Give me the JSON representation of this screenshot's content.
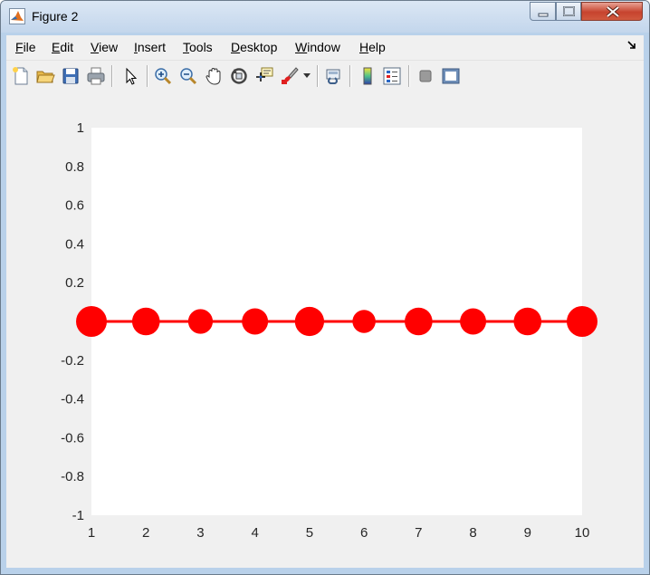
{
  "window": {
    "title": "Figure 2",
    "controls": {
      "minimize": "minimize",
      "maximize": "maximize",
      "close": "close"
    }
  },
  "menubar": {
    "items": [
      {
        "label": "File",
        "mnemonic": "F",
        "rest": "ile"
      },
      {
        "label": "Edit",
        "mnemonic": "E",
        "rest": "dit"
      },
      {
        "label": "View",
        "mnemonic": "V",
        "rest": "iew"
      },
      {
        "label": "Insert",
        "mnemonic": "I",
        "rest": "nsert"
      },
      {
        "label": "Tools",
        "mnemonic": "T",
        "rest": "ools"
      },
      {
        "label": "Desktop",
        "mnemonic": "D",
        "rest": "esktop"
      },
      {
        "label": "Window",
        "mnemonic": "W",
        "rest": "indow"
      },
      {
        "label": "Help",
        "mnemonic": "H",
        "rest": "elp"
      }
    ]
  },
  "toolbar": {
    "icons": [
      "new-figure-icon",
      "open-file-icon",
      "save-icon",
      "print-icon",
      "edit-plot-icon",
      "zoom-in-icon",
      "zoom-out-icon",
      "pan-icon",
      "rotate-3d-icon",
      "data-cursor-icon",
      "brush-icon",
      "link-plot-icon",
      "insert-colorbar-icon",
      "insert-legend-icon",
      "hide-plot-tools-icon",
      "show-plot-tools-icon"
    ]
  },
  "colors": {
    "series": "#ff0000",
    "axes_bg": "#ffffff",
    "figure_bg": "#f0f0f0"
  },
  "chart_data": {
    "type": "line",
    "title": "",
    "xlabel": "",
    "ylabel": "",
    "xlim": [
      1,
      10
    ],
    "ylim": [
      -1,
      1
    ],
    "xticks": [
      1,
      2,
      3,
      4,
      5,
      6,
      7,
      8,
      9,
      10
    ],
    "xtick_labels": [
      "1",
      "2",
      "3",
      "4",
      "5",
      "6",
      "7",
      "8",
      "9",
      "10"
    ],
    "yticks": [
      -1,
      -0.8,
      -0.6,
      -0.4,
      -0.2,
      0,
      0.2,
      0.4,
      0.6,
      0.8,
      1
    ],
    "ytick_labels": [
      "-1",
      "-0.8",
      "-0.6",
      "-0.4",
      "-0.2",
      "",
      "0.2",
      "0.4",
      "0.6",
      "0.8",
      "1"
    ],
    "grid": false,
    "series": [
      {
        "x": [
          1,
          2,
          3,
          4,
          5,
          6,
          7,
          8,
          9,
          10
        ],
        "y": [
          0,
          0,
          0,
          0,
          0,
          0,
          0,
          0,
          0,
          0
        ],
        "marker_size_rel": [
          1.0,
          0.9,
          0.8,
          0.85,
          0.95,
          0.75,
          0.9,
          0.85,
          0.9,
          1.0
        ],
        "color": "#ff0000",
        "marker": "circle"
      }
    ]
  }
}
